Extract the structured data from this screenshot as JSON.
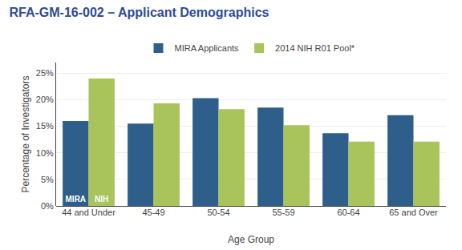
{
  "chart_data": {
    "type": "bar",
    "title": "RFA-GM-16-002 – Applicant Demographics",
    "xlabel": "Age Group",
    "ylabel": "Percentage of Investigators",
    "categories": [
      "44 and Under",
      "45-49",
      "50-54",
      "55-59",
      "60-64",
      "65 and Over"
    ],
    "series": [
      {
        "name": "MIRA Applicants",
        "color": "#2E5F8A",
        "values": [
          16.0,
          15.5,
          20.3,
          18.5,
          13.7,
          17.1
        ]
      },
      {
        "name": "2014 NIH R01 Pool*",
        "color": "#A8C45A",
        "values": [
          24.0,
          19.3,
          18.2,
          15.2,
          12.1,
          12.1
        ]
      }
    ],
    "annotations": [
      {
        "text": "MIRA",
        "series": "MIRA Applicants",
        "category": "44 and Under"
      },
      {
        "text": "NIH",
        "series": "2014 NIH R01 Pool*",
        "category": "44 and Under"
      }
    ],
    "ylim": [
      0,
      27
    ],
    "yticks": [
      {
        "value": 0,
        "label": "0%"
      },
      {
        "value": 5,
        "label": "5%"
      },
      {
        "value": 10,
        "label": "10%"
      },
      {
        "value": 15,
        "label": "15%"
      },
      {
        "value": 20,
        "label": "20%"
      },
      {
        "value": 25,
        "label": "25%"
      }
    ],
    "grid": true,
    "legend": "upper center"
  }
}
